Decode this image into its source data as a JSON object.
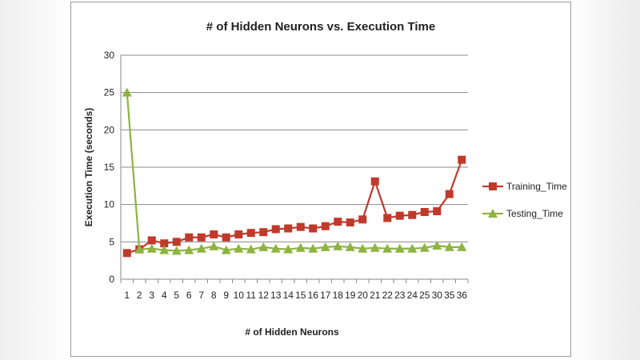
{
  "chart_data": {
    "type": "line",
    "title": "# of Hidden Neurons vs. Execution Time",
    "xlabel": "# of Hidden Neurons",
    "ylabel": "Execution Time (seconds)",
    "ylim": [
      0,
      30
    ],
    "yticks": [
      0,
      5,
      10,
      15,
      20,
      25,
      30
    ],
    "grid": true,
    "legend_position": "right",
    "categories": [
      "1",
      "2",
      "3",
      "4",
      "5",
      "6",
      "7",
      "8",
      "9",
      "10",
      "11",
      "12",
      "13",
      "14",
      "15",
      "16",
      "17",
      "18",
      "19",
      "20",
      "21",
      "22",
      "23",
      "24",
      "25",
      "30",
      "35",
      "36"
    ],
    "series": [
      {
        "name": "Training_Time",
        "color": "#c0392b",
        "marker": "square",
        "values": [
          3.5,
          4.0,
          5.2,
          4.8,
          5.0,
          5.6,
          5.6,
          6.0,
          5.6,
          6.0,
          6.2,
          6.3,
          6.7,
          6.8,
          7.0,
          6.8,
          7.1,
          7.7,
          7.6,
          8.0,
          13.1,
          8.2,
          8.5,
          8.6,
          9.0,
          9.1,
          11.4,
          16.0
        ]
      },
      {
        "name": "Testing_Time",
        "color": "#8db440",
        "marker": "triangle",
        "values": [
          25.0,
          4.0,
          4.1,
          3.9,
          3.8,
          3.9,
          4.1,
          4.4,
          3.9,
          4.1,
          4.0,
          4.3,
          4.1,
          4.0,
          4.2,
          4.1,
          4.3,
          4.4,
          4.3,
          4.1,
          4.2,
          4.1,
          4.1,
          4.1,
          4.2,
          4.5,
          4.3,
          4.3
        ]
      }
    ]
  }
}
